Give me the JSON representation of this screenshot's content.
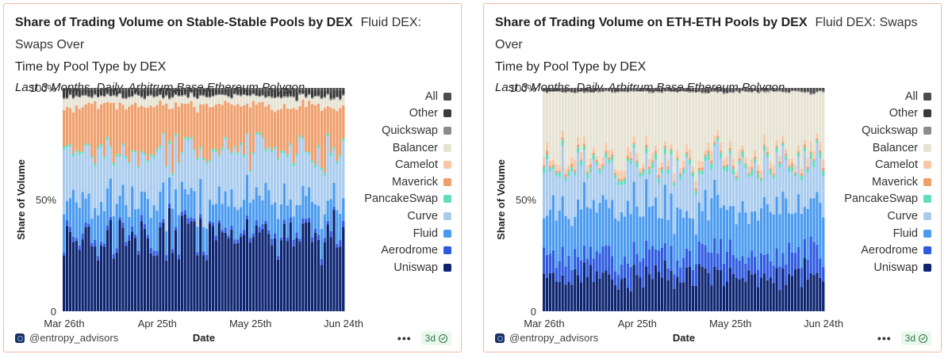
{
  "palette": {
    "All": "#4d4d4d",
    "Other": "#3a3a3a",
    "Quickswap": "#8c8c8c",
    "Balancer": "#e6e3d3",
    "Camelot": "#f7c7a6",
    "Maverick": "#ef9f6c",
    "PancakeSwap": "#62dbbe",
    "Curve": "#a9cbee",
    "Fluid": "#4a9bef",
    "Aerodrome": "#2f5ae0",
    "Uniswap": "#0d2470"
  },
  "legend_order": [
    "All",
    "Other",
    "Quickswap",
    "Balancer",
    "Camelot",
    "Maverick",
    "PancakeSwap",
    "Curve",
    "Fluid",
    "Aerodrome",
    "Uniswap"
  ],
  "cards": [
    {
      "title": "Share of Trading Volume on Stable-Stable Pools by DEX",
      "title_suffix_1": "Fluid DEX: Swaps Over",
      "title_suffix_2": "Time by Pool Type by DEX",
      "subtitle": "Last 3 Months, Daily, Arbitrum,Base,Ethereum,Polygon",
      "footer_author": "@entropy_advisors",
      "footer_age": "3d",
      "chart_data": {
        "type": "bar",
        "stacked": "percent",
        "x_start": "2025-03-26",
        "x_end": "2025-06-24",
        "days": 91,
        "xticks": [
          "Mar 26th",
          "Apr 25th",
          "May 25th",
          "Jun 24th"
        ],
        "yticks": [
          "0",
          "50%",
          "100%"
        ],
        "xlabel": "Date",
        "ylabel": "Share of Volume",
        "ylim": [
          0,
          1
        ],
        "legend_position": "right",
        "series_order_bottom_up": [
          "Uniswap",
          "Aerodrome",
          "Fluid",
          "Curve",
          "PancakeSwap",
          "Maverick",
          "Camelot",
          "Balancer",
          "Quickswap",
          "Other",
          "All"
        ],
        "series_mean_share": {
          "Uniswap": 0.34,
          "Aerodrome": 0.02,
          "Fluid": 0.14,
          "Curve": 0.22,
          "PancakeSwap": 0.01,
          "Maverick": 0.2,
          "Camelot": 0.0,
          "Balancer": 0.04,
          "Quickswap": 0.005,
          "Other": 0.025,
          "All": 0.01
        }
      }
    },
    {
      "title": "Share of Trading Volume on ETH-ETH Pools by DEX",
      "title_suffix_1": "Fluid DEX: Swaps Over",
      "title_suffix_2": "Time by Pool Type by DEX",
      "subtitle": "Last 3 Months, Daily, Arbitrum,Base,Ethereum,Polygon",
      "footer_author": "@entropy_advisors",
      "footer_age": "3d",
      "chart_data": {
        "type": "bar",
        "stacked": "percent",
        "x_start": "2025-03-26",
        "x_end": "2025-06-24",
        "days": 91,
        "xticks": [
          "Mar 26th",
          "Apr 25th",
          "May 25th",
          "Jun 24th"
        ],
        "yticks": [
          "0",
          "50%",
          "100%"
        ],
        "xlabel": "Date",
        "ylabel": "Share of Volume",
        "ylim": [
          0,
          1
        ],
        "legend_position": "right",
        "series_order_bottom_up": [
          "Uniswap",
          "Aerodrome",
          "Fluid",
          "Curve",
          "PancakeSwap",
          "Maverick",
          "Camelot",
          "Balancer",
          "Quickswap",
          "Other",
          "All"
        ],
        "series_mean_share": {
          "Uniswap": 0.16,
          "Aerodrome": 0.1,
          "Fluid": 0.2,
          "Curve": 0.18,
          "PancakeSwap": 0.02,
          "Maverick": 0.01,
          "Camelot": 0.03,
          "Balancer": 0.28,
          "Quickswap": 0.005,
          "Other": 0.005,
          "All": 0.01
        }
      }
    }
  ]
}
